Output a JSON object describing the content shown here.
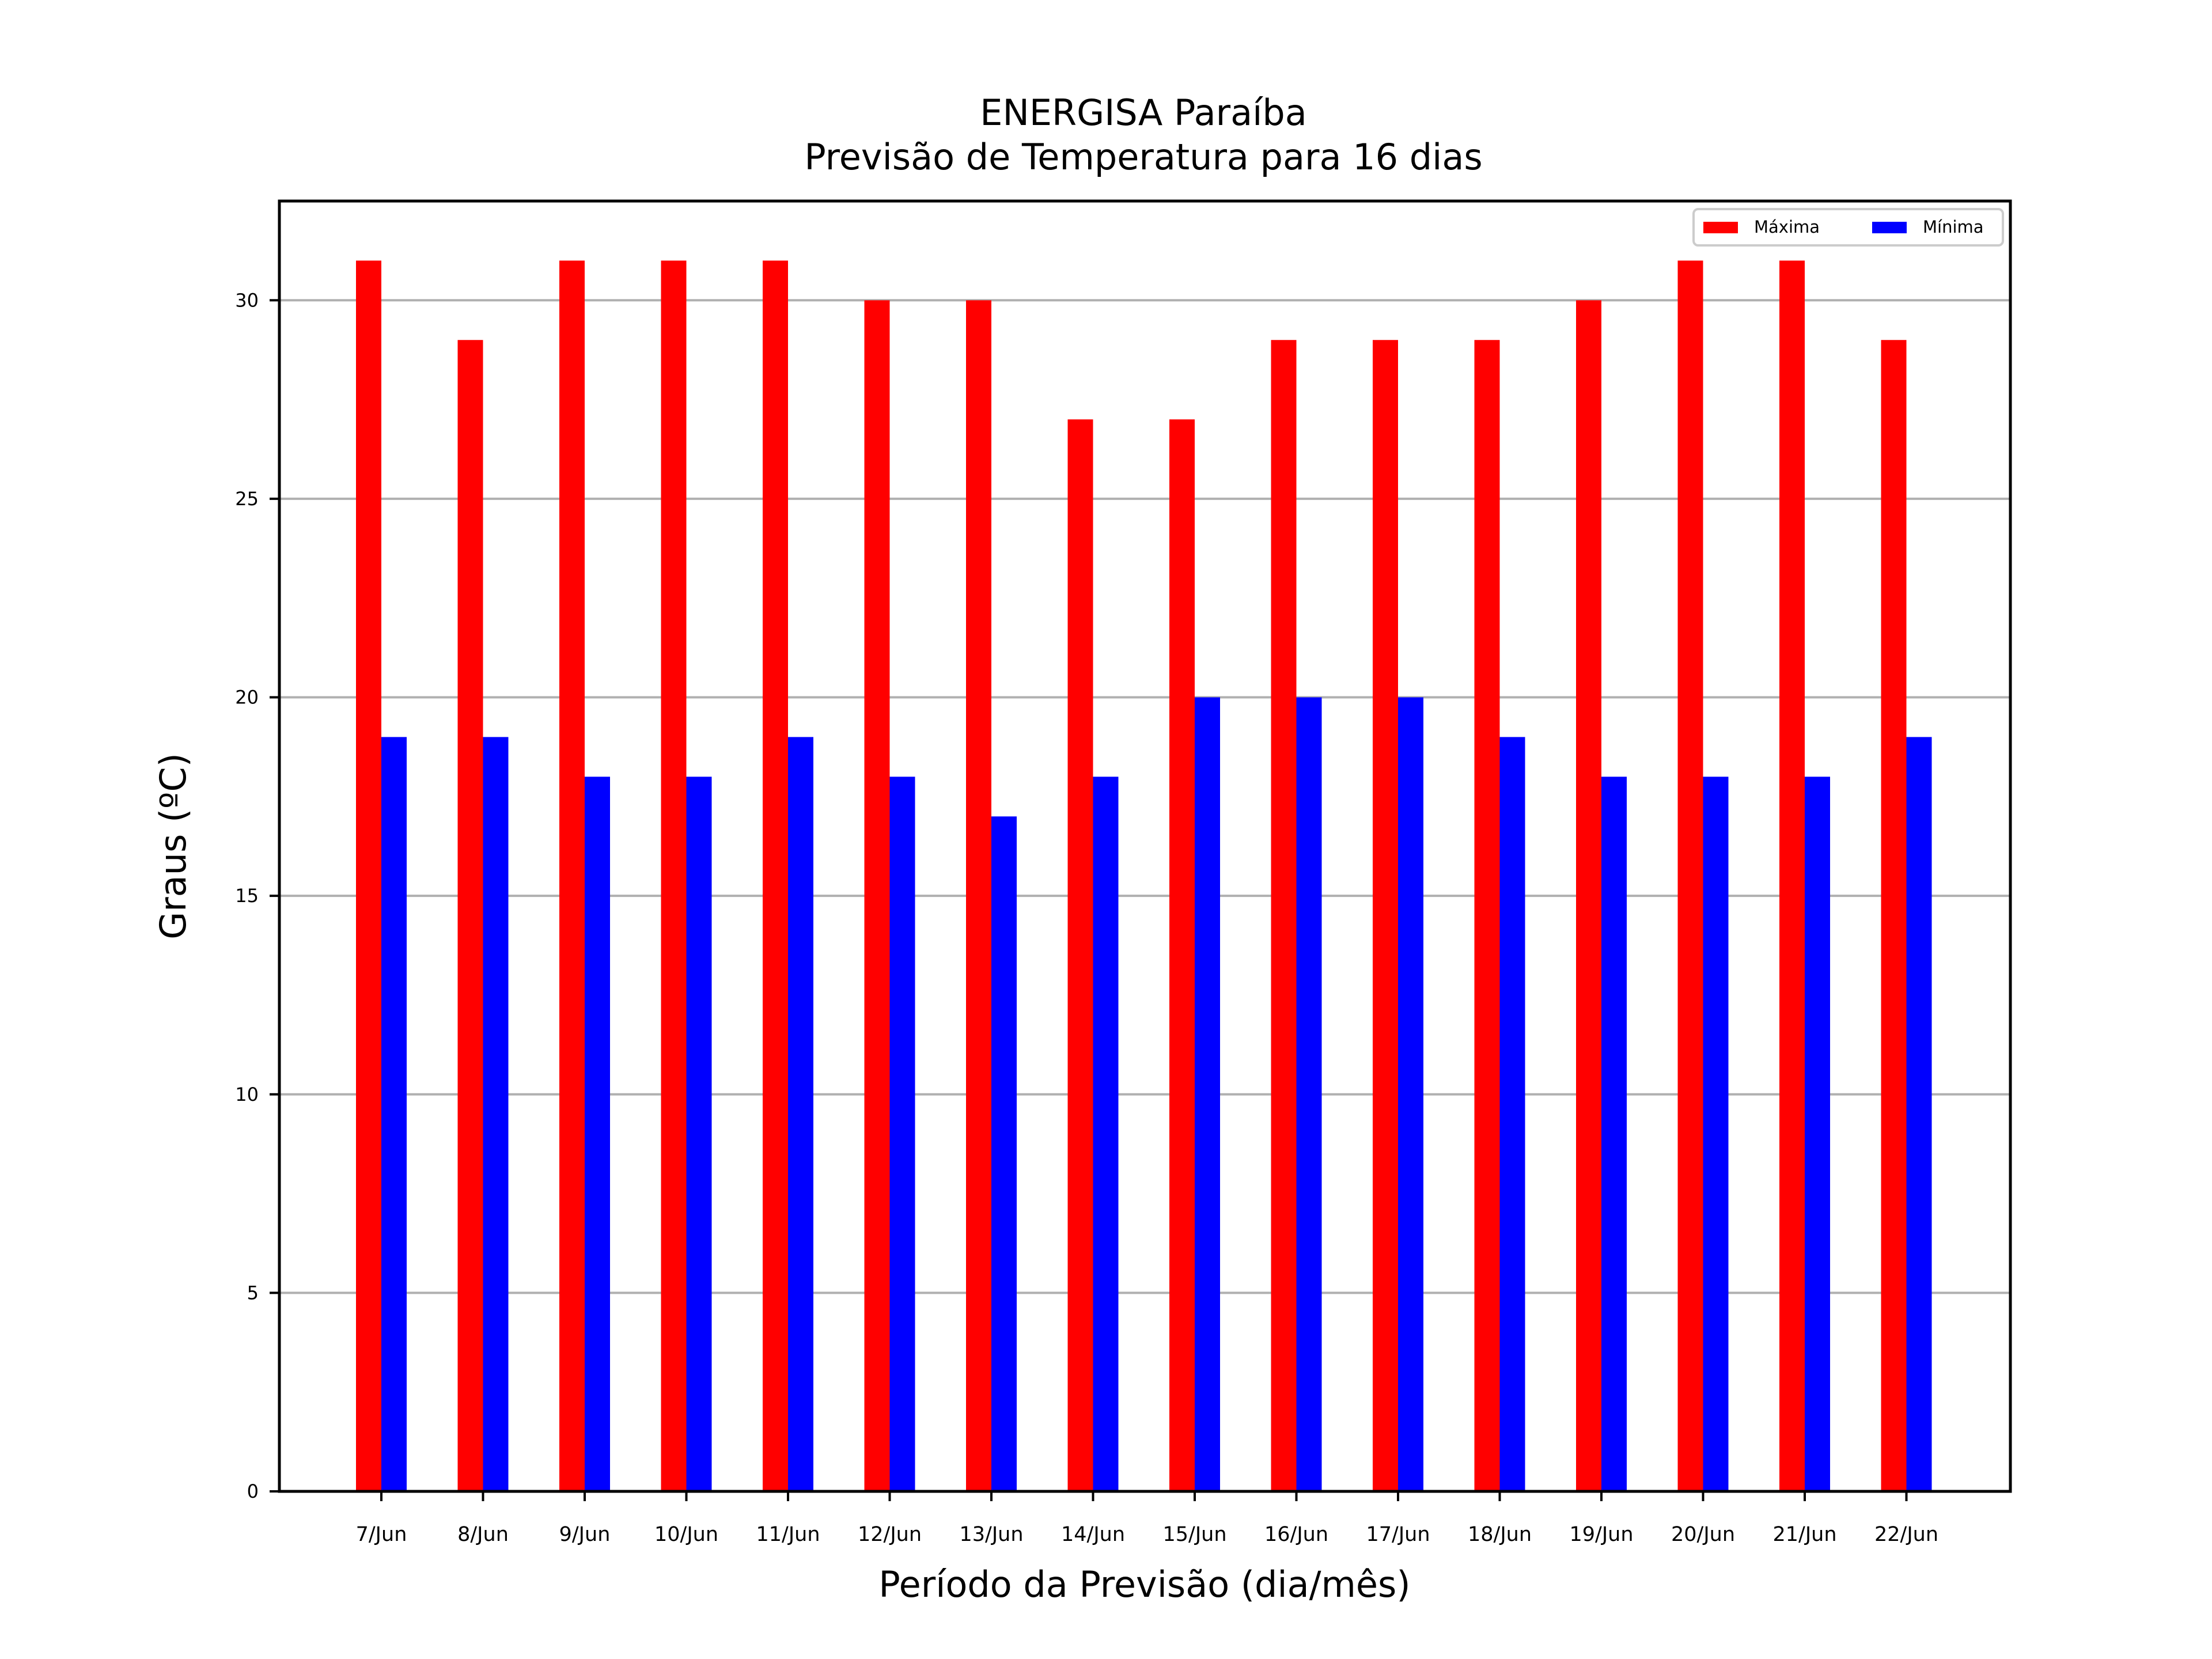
{
  "chart_data": {
    "type": "bar",
    "title_line1": "ENERGISA Paraíba",
    "title_line2": "Previsão de Temperatura para 16 dias",
    "xlabel": "Período da Previsão (dia/mês)",
    "ylabel": "Graus (ºC)",
    "ylim": [
      0,
      32.5
    ],
    "yticks": [
      0,
      5,
      10,
      15,
      20,
      25,
      30
    ],
    "grid": "horizontal",
    "legend_position": "top-right",
    "categories": [
      "7/Jun",
      "8/Jun",
      "9/Jun",
      "10/Jun",
      "11/Jun",
      "12/Jun",
      "13/Jun",
      "14/Jun",
      "15/Jun",
      "16/Jun",
      "17/Jun",
      "18/Jun",
      "19/Jun",
      "20/Jun",
      "21/Jun",
      "22/Jun"
    ],
    "series": [
      {
        "name": "Máxima",
        "color": "#ff0000",
        "values": [
          31,
          29,
          31,
          31,
          31,
          30,
          30,
          27,
          27,
          29,
          29,
          29,
          30,
          31,
          31,
          29
        ]
      },
      {
        "name": "Mínima",
        "color": "#0000ff",
        "values": [
          19,
          19,
          18,
          18,
          19,
          18,
          17,
          18,
          20,
          20,
          20,
          19,
          18,
          18,
          18,
          19
        ]
      }
    ]
  }
}
